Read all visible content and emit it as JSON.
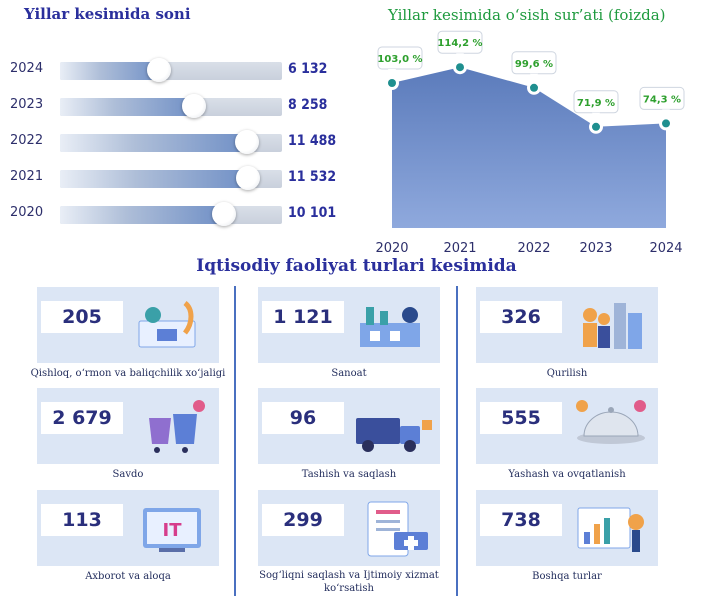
{
  "left_title": "Yillar kesimida soni",
  "right_title": "Yillar kesimida o‘sish sur’ati (foizda)",
  "section_title": "Iqtisodiy faoliyat turlari kesimida",
  "chart_data": [
    {
      "type": "bar",
      "title": "Yillar kesimida soni",
      "categories": [
        "2024",
        "2023",
        "2022",
        "2021",
        "2020"
      ],
      "values": [
        6132,
        8258,
        11488,
        11532,
        10101
      ],
      "value_labels": [
        "6 132",
        "8 258",
        "11 488",
        "11 532",
        "10 101"
      ],
      "orientation": "horizontal",
      "color": "#6f8fc6"
    },
    {
      "type": "area",
      "title": "Yillar kesimida o‘sish sur’ati (foizda)",
      "x": [
        "2020",
        "2021",
        "2022",
        "2023",
        "2024"
      ],
      "values": [
        103.0,
        114.2,
        99.6,
        71.9,
        74.3
      ],
      "value_labels": [
        "103,0 %",
        "114,2 %",
        "99,6 %",
        "71,9 %",
        "74,3 %"
      ],
      "ylim": [
        0,
        125
      ],
      "color": "#5b7fc2",
      "label_color": "#2ea02e"
    }
  ],
  "cards": [
    {
      "value": "205",
      "label": "Qishloq, o‘rmon va baliqchilik xo‘jaligi",
      "icon": "agriculture-icon"
    },
    {
      "value": "1 121",
      "label": "Sanoat",
      "icon": "industry-icon"
    },
    {
      "value": "326",
      "label": "Qurilish",
      "icon": "construction-icon"
    },
    {
      "value": "2 679",
      "label": "Savdo",
      "icon": "shopping-icon"
    },
    {
      "value": "96",
      "label": "Tashish va saqlash",
      "icon": "delivery-truck-icon"
    },
    {
      "value": "555",
      "label": "Yashash va ovqatlanish",
      "icon": "food-service-icon"
    },
    {
      "value": "113",
      "label": "Axborot va aloqa",
      "icon": "it-icon"
    },
    {
      "value": "299",
      "label": "Sog‘liqni saqlash va Ijtimoiy xizmat ko‘rsatish",
      "icon": "healthcare-icon"
    },
    {
      "value": "738",
      "label": "Boshqa turlar",
      "icon": "analytics-icon"
    }
  ]
}
